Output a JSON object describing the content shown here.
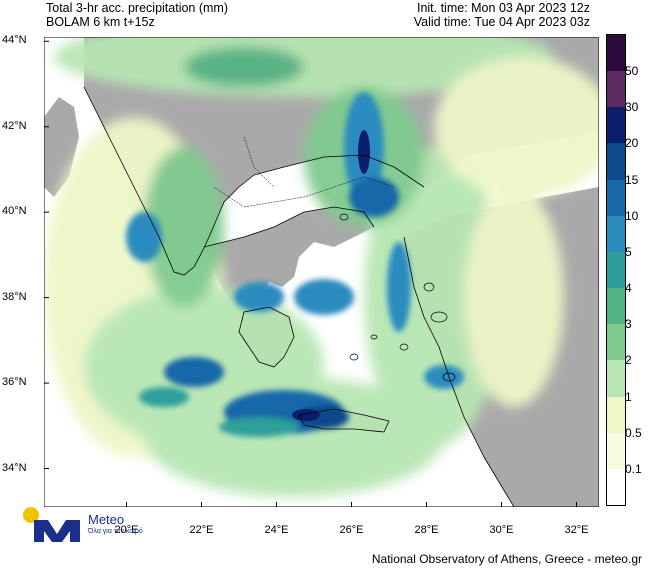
{
  "header": {
    "title": "Total 3-hr acc. precipitation (mm)",
    "subtitle": "BOLAM 6 km t+15z",
    "init_time": "Init. time: Mon 03 Apr 2023 12z",
    "valid_time": "Valid time: Tue 04 Apr 2023 03z"
  },
  "axes": {
    "lat_labels": [
      "44°N",
      "42°N",
      "40°N",
      "38°N",
      "36°N",
      "34°N"
    ],
    "lat_values": [
      44,
      42,
      40,
      38,
      36,
      34
    ],
    "lon_labels": [
      "20°E",
      "22°E",
      "24°E",
      "26°E",
      "28°E",
      "30°E",
      "32°E"
    ],
    "lon_values": [
      20,
      22,
      24,
      26,
      28,
      30,
      32
    ],
    "lon_range": [
      17.8,
      32.6
    ],
    "lat_range": [
      33.1,
      44.1
    ]
  },
  "legend": {
    "labels": [
      "50",
      "30",
      "20",
      "15",
      "10",
      "5",
      "4",
      "3",
      "2",
      "1",
      "0.5",
      "0.1"
    ],
    "colors": [
      "#2b0a3d",
      "#5c2a60",
      "#0b1e6e",
      "#0d4a8a",
      "#1668a8",
      "#2a8bbf",
      "#2d9f9a",
      "#52b383",
      "#7fcb8f",
      "#b7e6b3",
      "#eef7c8",
      "#f7fbe0",
      "#ffffff"
    ]
  },
  "colors": {
    "land": "#a9a9a9",
    "sea": "#ffffff",
    "brand": "#1a2e8c",
    "brand_accent": "#f2c200"
  },
  "logo": {
    "name": "Meteo",
    "tagline": "Όλα για τον καιρό"
  },
  "credit": "National Observatory of Athens, Greece - meteo.gr"
}
